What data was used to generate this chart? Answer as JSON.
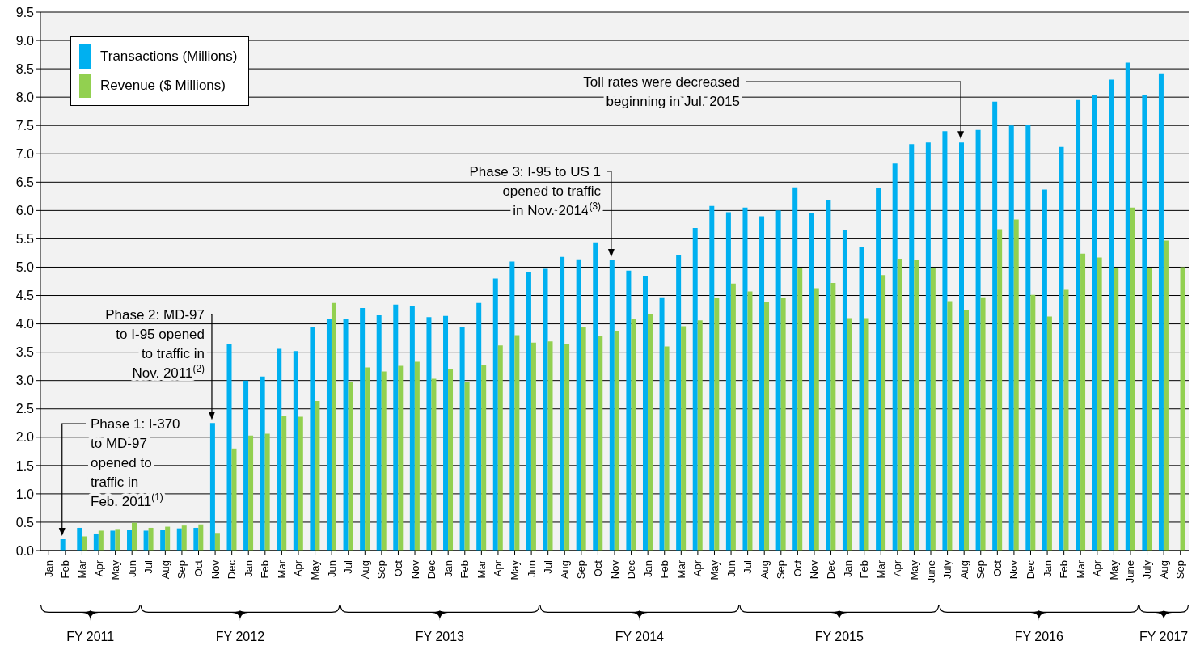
{
  "chart_data": {
    "type": "bar",
    "categories": [
      "Jan",
      "Feb",
      "Mar",
      "Apr",
      "May",
      "Jun",
      "Jul",
      "Aug",
      "Sep",
      "Oct",
      "Nov",
      "Dec",
      "Jan",
      "Feb",
      "Mar",
      "Apr",
      "May",
      "Jun",
      "Jul",
      "Aug",
      "Sep",
      "Oct",
      "Nov",
      "Dec",
      "Jan",
      "Feb",
      "Mar",
      "Apr",
      "May",
      "Jun",
      "Jul",
      "Aug",
      "Sep",
      "Oct",
      "Nov",
      "Dec",
      "Jan",
      "Feb",
      "Mar",
      "Apr",
      "May",
      "Jun",
      "Jul",
      "Aug",
      "Sep",
      "Oct",
      "Nov",
      "Dec",
      "Jan",
      "Feb",
      "Mar",
      "Apr",
      "May",
      "June",
      "July",
      "Aug",
      "Sep",
      "Oct",
      "Nov",
      "Dec",
      "Jan",
      "Feb",
      "Mar",
      "Apr",
      "May",
      "June",
      "July",
      "Aug",
      "Sep"
    ],
    "series": [
      {
        "name": "Transactions (Millions)",
        "color": "#00b0f0",
        "values": [
          null,
          0.2,
          0.4,
          0.3,
          0.35,
          0.37,
          0.35,
          0.37,
          0.39,
          0.4,
          2.25,
          3.65,
          3.0,
          3.07,
          3.56,
          3.52,
          3.95,
          4.09,
          4.09,
          4.28,
          4.15,
          4.34,
          4.32,
          4.12,
          4.14,
          3.95,
          4.37,
          4.8,
          5.1,
          4.91,
          4.97,
          5.18,
          5.14,
          5.44,
          5.12,
          4.94,
          4.85,
          4.47,
          5.21,
          5.69,
          6.08,
          5.97,
          6.05,
          5.9,
          6.0,
          6.41,
          5.95,
          6.18,
          5.65,
          5.36,
          6.39,
          6.83,
          7.17,
          7.2,
          7.4,
          7.2,
          7.42,
          7.92,
          7.5,
          7.51,
          6.37,
          7.12,
          7.95,
          8.03,
          8.31,
          8.61,
          8.03,
          8.42,
          null
        ]
      },
      {
        "name": "Revenue ($ Millions)",
        "color": "#92d050",
        "values": [
          null,
          null,
          0.25,
          0.35,
          0.38,
          0.49,
          0.4,
          0.42,
          0.44,
          0.46,
          0.31,
          1.8,
          2.03,
          2.06,
          2.38,
          2.36,
          2.64,
          4.37,
          2.97,
          3.23,
          3.16,
          3.26,
          3.33,
          3.03,
          3.2,
          2.98,
          3.28,
          3.62,
          3.8,
          3.67,
          3.69,
          3.65,
          3.95,
          3.78,
          3.88,
          4.09,
          4.17,
          3.6,
          3.96,
          4.06,
          4.46,
          4.71,
          4.57,
          4.38,
          4.45,
          4.99,
          4.63,
          4.72,
          4.1,
          4.1,
          4.86,
          5.15,
          5.13,
          4.98,
          4.4,
          4.24,
          4.47,
          5.67,
          5.84,
          4.51,
          4.13,
          4.6,
          5.24,
          5.17,
          4.98,
          6.05,
          4.98,
          5.47,
          5.0
        ]
      }
    ],
    "ylim": [
      0,
      9.5
    ],
    "yticks": [
      {
        "value": 0,
        "label": "0.0"
      },
      {
        "value": 0.5,
        "label": "0.5"
      },
      {
        "value": 1,
        "label": "1.0"
      },
      {
        "value": 1.5,
        "label": "1.5"
      },
      {
        "value": 2,
        "label": "2.0"
      },
      {
        "value": 2.5,
        "label": "2.5"
      },
      {
        "value": 3,
        "label": "3.0"
      },
      {
        "value": 3.5,
        "label": "3.5"
      },
      {
        "value": 4,
        "label": "4.0"
      },
      {
        "value": 4.5,
        "label": "4.5"
      },
      {
        "value": 5,
        "label": "5.0"
      },
      {
        "value": 5.5,
        "label": "5.5"
      },
      {
        "value": 6,
        "label": "6.0"
      },
      {
        "value": 6.5,
        "label": "6.5"
      },
      {
        "value": 7,
        "label": "7.0"
      },
      {
        "value": 7.5,
        "label": "7.5"
      },
      {
        "value": 8,
        "label": "8.0"
      },
      {
        "value": 8.5,
        "label": "8.5"
      },
      {
        "value": 9,
        "label": "9.0"
      },
      {
        "value": 9.5,
        "label": "9.5"
      }
    ],
    "grid": "y",
    "legend": "top left",
    "annotations": [
      "Phase 1: I-370\nto MD-97\nopened to\ntraffic in\nFeb. 2011$^{(1)}$",
      "Phase 2: MD-97\nto I-95 opened\nto traffic in\nNov. 2011$^{(2)}$",
      "Phase 3: I-95 to US 1\nopened to traffic\nin  Nov. 2014$^{(3)}$",
      "Toll rates were decreased\nbeginning in Jul. 2015",
      "FY 2011",
      "FY 2012",
      "FY 2013",
      "FY 2014",
      "FY 2015",
      "FY 2016",
      "FY 2017"
    ]
  }
}
